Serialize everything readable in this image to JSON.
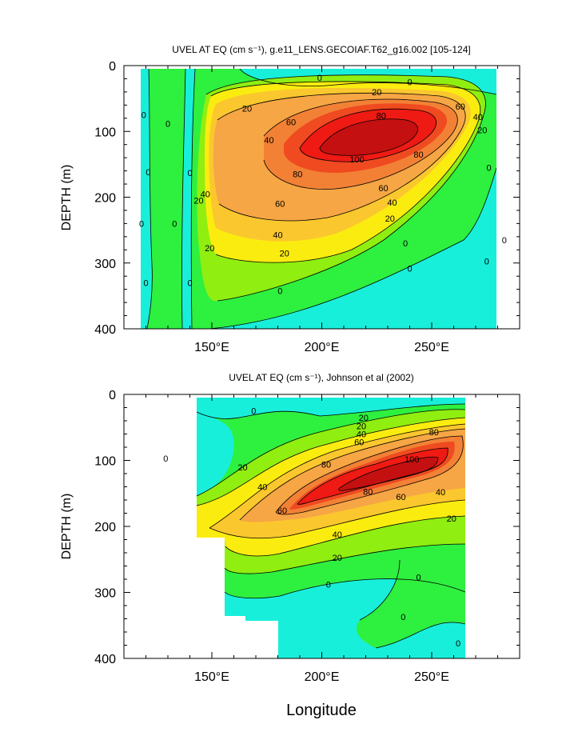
{
  "colors": {
    "level_neg": "#18efdb",
    "level_0": "#2ef03f",
    "level_10": "#90ee10",
    "level_20": "#fbec10",
    "level_30": "#fbc72e",
    "level_40": "#f6a644",
    "level_60": "#f28135",
    "level_70": "#f04a20",
    "level_80": "#ee1a13",
    "level_100": "#c41010"
  },
  "chart_data": [
    {
      "type": "contour",
      "title": "UVEL AT EQ (cm s⁻¹), g.e11_LENS.GECOIAF.T62_g16.002 [105-124]",
      "xlabel": "",
      "ylabel": "DEPTH (m)",
      "xlim": [
        110,
        290
      ],
      "ylim": [
        400,
        0
      ],
      "x_ticks": [
        150,
        200,
        250
      ],
      "x_tick_labels": [
        "150°E",
        "200°E",
        "250°E"
      ],
      "y_ticks": [
        0,
        100,
        200,
        300,
        400
      ],
      "y_tick_labels": [
        "0",
        "100",
        "200",
        "300",
        "400"
      ],
      "data_extent": {
        "lon": [
          117,
          279
        ],
        "depth": [
          5,
          400
        ]
      },
      "levels": [
        0,
        20,
        40,
        60,
        80,
        100
      ],
      "core": {
        "lon": 222,
        "depth": 112,
        "max": 100
      },
      "contour_labels": [
        {
          "text": "0",
          "lon": 199,
          "depth": 18
        },
        {
          "text": "0",
          "lon": 240,
          "depth": 25
        },
        {
          "text": "20",
          "lon": 225,
          "depth": 40
        },
        {
          "text": "60",
          "lon": 263,
          "depth": 62
        },
        {
          "text": "40",
          "lon": 271,
          "depth": 78
        },
        {
          "text": "20",
          "lon": 273,
          "depth": 98
        },
        {
          "text": "80",
          "lon": 227,
          "depth": 76
        },
        {
          "text": "60",
          "lon": 186,
          "depth": 86
        },
        {
          "text": "20",
          "lon": 166,
          "depth": 65
        },
        {
          "text": "40",
          "lon": 176,
          "depth": 113
        },
        {
          "text": "100",
          "lon": 216,
          "depth": 142
        },
        {
          "text": "80",
          "lon": 244,
          "depth": 135
        },
        {
          "text": "80",
          "lon": 189,
          "depth": 165
        },
        {
          "text": "60",
          "lon": 228,
          "depth": 186
        },
        {
          "text": "40",
          "lon": 232,
          "depth": 208
        },
        {
          "text": "60",
          "lon": 181,
          "depth": 210
        },
        {
          "text": "20",
          "lon": 231,
          "depth": 232
        },
        {
          "text": "40",
          "lon": 180,
          "depth": 257
        },
        {
          "text": "20",
          "lon": 183,
          "depth": 285
        },
        {
          "text": "0",
          "lon": 238,
          "depth": 270
        },
        {
          "text": "0",
          "lon": 240,
          "depth": 308
        },
        {
          "text": "0",
          "lon": 181,
          "depth": 342
        },
        {
          "text": "0",
          "lon": 119,
          "depth": 75
        },
        {
          "text": "0",
          "lon": 130,
          "depth": 88
        },
        {
          "text": "0",
          "lon": 121,
          "depth": 162
        },
        {
          "text": "0",
          "lon": 140,
          "depth": 163
        },
        {
          "text": "40",
          "lon": 147,
          "depth": 195
        },
        {
          "text": "20",
          "lon": 144,
          "depth": 205
        },
        {
          "text": "0",
          "lon": 118,
          "depth": 240
        },
        {
          "text": "0",
          "lon": 133,
          "depth": 240
        },
        {
          "text": "20",
          "lon": 149,
          "depth": 277
        },
        {
          "text": "0",
          "lon": 120,
          "depth": 330
        },
        {
          "text": "0",
          "lon": 140,
          "depth": 330
        },
        {
          "text": "0",
          "lon": 276,
          "depth": 155
        },
        {
          "text": "0",
          "lon": 283,
          "depth": 265
        },
        {
          "text": "0",
          "lon": 275,
          "depth": 297
        }
      ]
    },
    {
      "type": "contour",
      "title": "UVEL AT EQ (cm s⁻¹), Johnson et al (2002)",
      "xlabel": "Longitude",
      "ylabel": "DEPTH (m)",
      "xlim": [
        110,
        290
      ],
      "ylim": [
        400,
        0
      ],
      "x_ticks": [
        150,
        200,
        250
      ],
      "x_tick_labels": [
        "150°E",
        "200°E",
        "250°E"
      ],
      "y_ticks": [
        0,
        100,
        200,
        300,
        400
      ],
      "y_tick_labels": [
        "0",
        "100",
        "200",
        "300",
        "400"
      ],
      "data_extent": {
        "lon": [
          143,
          265
        ],
        "depth": [
          5,
          400
        ]
      },
      "levels": [
        0,
        20,
        40,
        60,
        80,
        100
      ],
      "core": {
        "lon": 233,
        "depth": 105,
        "max": 100
      },
      "contour_labels": [
        {
          "text": "0",
          "lon": 169,
          "depth": 25
        },
        {
          "text": "0",
          "lon": 129,
          "depth": 97
        },
        {
          "text": "20",
          "lon": 219,
          "depth": 35
        },
        {
          "text": "20",
          "lon": 218,
          "depth": 48
        },
        {
          "text": "40",
          "lon": 218,
          "depth": 60
        },
        {
          "text": "60",
          "lon": 217,
          "depth": 72
        },
        {
          "text": "80",
          "lon": 251,
          "depth": 57
        },
        {
          "text": "100",
          "lon": 241,
          "depth": 98
        },
        {
          "text": "80",
          "lon": 202,
          "depth": 106
        },
        {
          "text": "20",
          "lon": 164,
          "depth": 110
        },
        {
          "text": "40",
          "lon": 173,
          "depth": 140
        },
        {
          "text": "80",
          "lon": 221,
          "depth": 147
        },
        {
          "text": "60",
          "lon": 236,
          "depth": 155
        },
        {
          "text": "40",
          "lon": 254,
          "depth": 148
        },
        {
          "text": "60",
          "lon": 182,
          "depth": 176
        },
        {
          "text": "20",
          "lon": 259,
          "depth": 188
        },
        {
          "text": "40",
          "lon": 207,
          "depth": 212
        },
        {
          "text": "20",
          "lon": 207,
          "depth": 247
        },
        {
          "text": "0",
          "lon": 203,
          "depth": 288
        },
        {
          "text": "0",
          "lon": 244,
          "depth": 277
        },
        {
          "text": "0",
          "lon": 237,
          "depth": 337
        },
        {
          "text": "0",
          "lon": 262,
          "depth": 377
        }
      ]
    }
  ]
}
